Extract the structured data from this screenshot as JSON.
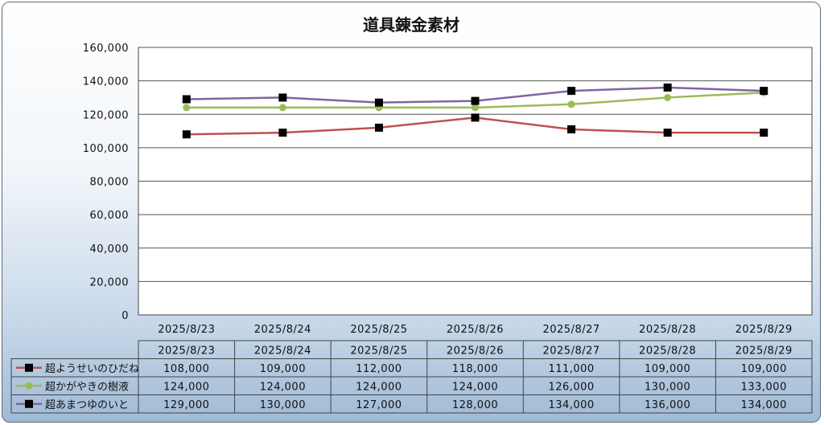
{
  "chart_data": {
    "type": "line",
    "title": "道具錬金素材",
    "categories": [
      "2025/8/23",
      "2025/8/24",
      "2025/8/25",
      "2025/8/26",
      "2025/8/27",
      "2025/8/28",
      "2025/8/29"
    ],
    "ylim": [
      0,
      160000
    ],
    "y_ticks": [
      "0",
      "20,000",
      "40,000",
      "60,000",
      "80,000",
      "100,000",
      "120,000",
      "140,000",
      "160,000"
    ],
    "grid": true,
    "legend": "data-table",
    "series": [
      {
        "name": "超ようせいのひだね",
        "color": "#c0504d",
        "marker": "square",
        "values": [
          108000,
          109000,
          112000,
          118000,
          111000,
          109000,
          109000
        ],
        "labels": [
          "108,000",
          "109,000",
          "112,000",
          "118,000",
          "111,000",
          "109,000",
          "109,000"
        ]
      },
      {
        "name": "超かがやきの樹液",
        "color": "#9bbb59",
        "marker": "circle",
        "values": [
          124000,
          124000,
          124000,
          124000,
          126000,
          130000,
          133000
        ],
        "labels": [
          "124,000",
          "124,000",
          "124,000",
          "124,000",
          "126,000",
          "130,000",
          "133,000"
        ]
      },
      {
        "name": "超あまつゆのいと",
        "color": "#8064a2",
        "marker": "square",
        "values": [
          129000,
          130000,
          127000,
          128000,
          134000,
          136000,
          134000
        ],
        "labels": [
          "129,000",
          "130,000",
          "127,000",
          "128,000",
          "134,000",
          "136,000",
          "134,000"
        ]
      }
    ]
  }
}
